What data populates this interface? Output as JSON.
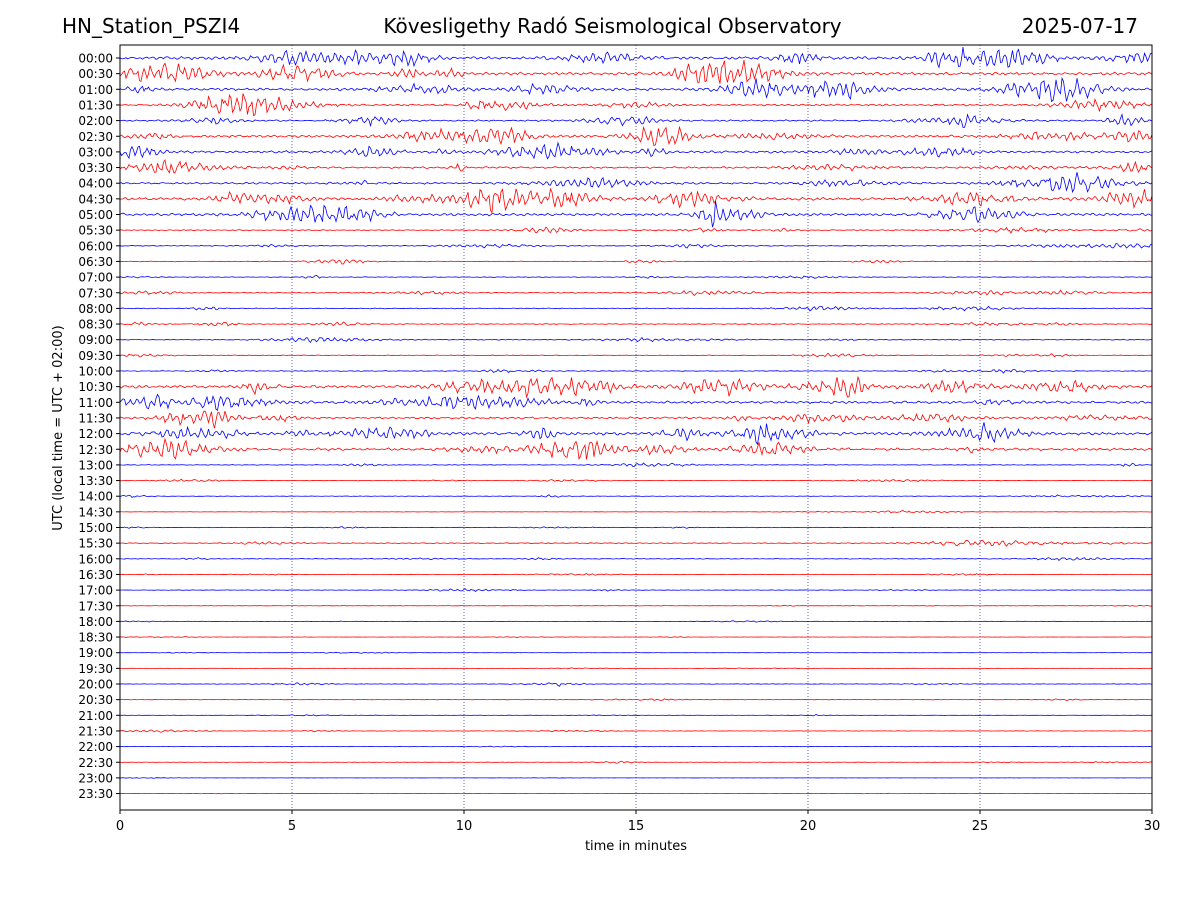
{
  "header": {
    "station": "HN_Station_PSZI4",
    "observatory": "Kövesligethy Radó Seismological Observatory",
    "date": "2025-07-17"
  },
  "chart_data": {
    "type": "line",
    "title": "Kövesligethy Radó Seismological Observatory",
    "xlabel": "time in minutes",
    "ylabel": "UTC (local time = UTC + 02:00)",
    "xlim": [
      0,
      30
    ],
    "x_ticks": [
      "0",
      "5",
      "10",
      "15",
      "20",
      "25",
      "30"
    ],
    "x_tick_values": [
      0,
      5,
      10,
      15,
      20,
      25,
      30
    ],
    "grid": "vertical dotted at ticks",
    "trace_colors": [
      "#0000ff",
      "#ff0000"
    ],
    "rows": [
      {
        "label": "00:00",
        "amplitude": 0.9
      },
      {
        "label": "00:30",
        "amplitude": 0.85
      },
      {
        "label": "01:00",
        "amplitude": 0.8
      },
      {
        "label": "01:30",
        "amplitude": 0.55
      },
      {
        "label": "02:00",
        "amplitude": 0.5
      },
      {
        "label": "02:30",
        "amplitude": 0.75
      },
      {
        "label": "03:00",
        "amplitude": 0.7
      },
      {
        "label": "03:30",
        "amplitude": 0.55
      },
      {
        "label": "04:00",
        "amplitude": 0.6
      },
      {
        "label": "04:30",
        "amplitude": 0.85
      },
      {
        "label": "05:00",
        "amplitude": 0.8
      },
      {
        "label": "05:30",
        "amplitude": 0.3
      },
      {
        "label": "06:00",
        "amplitude": 0.25
      },
      {
        "label": "06:30",
        "amplitude": 0.2
      },
      {
        "label": "07:00",
        "amplitude": 0.2
      },
      {
        "label": "07:30",
        "amplitude": 0.3
      },
      {
        "label": "08:00",
        "amplitude": 0.25
      },
      {
        "label": "08:30",
        "amplitude": 0.25
      },
      {
        "label": "09:00",
        "amplitude": 0.25
      },
      {
        "label": "09:30",
        "amplitude": 0.2
      },
      {
        "label": "10:00",
        "amplitude": 0.25
      },
      {
        "label": "10:30",
        "amplitude": 0.9
      },
      {
        "label": "11:00",
        "amplitude": 0.8
      },
      {
        "label": "11:30",
        "amplitude": 0.6
      },
      {
        "label": "12:00",
        "amplitude": 0.85
      },
      {
        "label": "12:30",
        "amplitude": 0.75
      },
      {
        "label": "13:00",
        "amplitude": 0.2
      },
      {
        "label": "13:30",
        "amplitude": 0.15
      },
      {
        "label": "14:00",
        "amplitude": 0.15
      },
      {
        "label": "14:30",
        "amplitude": 0.1
      },
      {
        "label": "15:00",
        "amplitude": 0.15
      },
      {
        "label": "15:30",
        "amplitude": 0.25
      },
      {
        "label": "16:00",
        "amplitude": 0.2
      },
      {
        "label": "16:30",
        "amplitude": 0.15
      },
      {
        "label": "17:00",
        "amplitude": 0.15
      },
      {
        "label": "17:30",
        "amplitude": 0.1
      },
      {
        "label": "18:00",
        "amplitude": 0.08
      },
      {
        "label": "18:30",
        "amplitude": 0.06
      },
      {
        "label": "19:00",
        "amplitude": 0.06
      },
      {
        "label": "19:30",
        "amplitude": 0.06
      },
      {
        "label": "20:00",
        "amplitude": 0.15
      },
      {
        "label": "20:30",
        "amplitude": 0.1
      },
      {
        "label": "21:00",
        "amplitude": 0.08
      },
      {
        "label": "21:30",
        "amplitude": 0.12
      },
      {
        "label": "22:00",
        "amplitude": 0.06
      },
      {
        "label": "22:30",
        "amplitude": 0.1
      },
      {
        "label": "23:00",
        "amplitude": 0.04
      },
      {
        "label": "23:30",
        "amplitude": 0.04
      }
    ]
  }
}
